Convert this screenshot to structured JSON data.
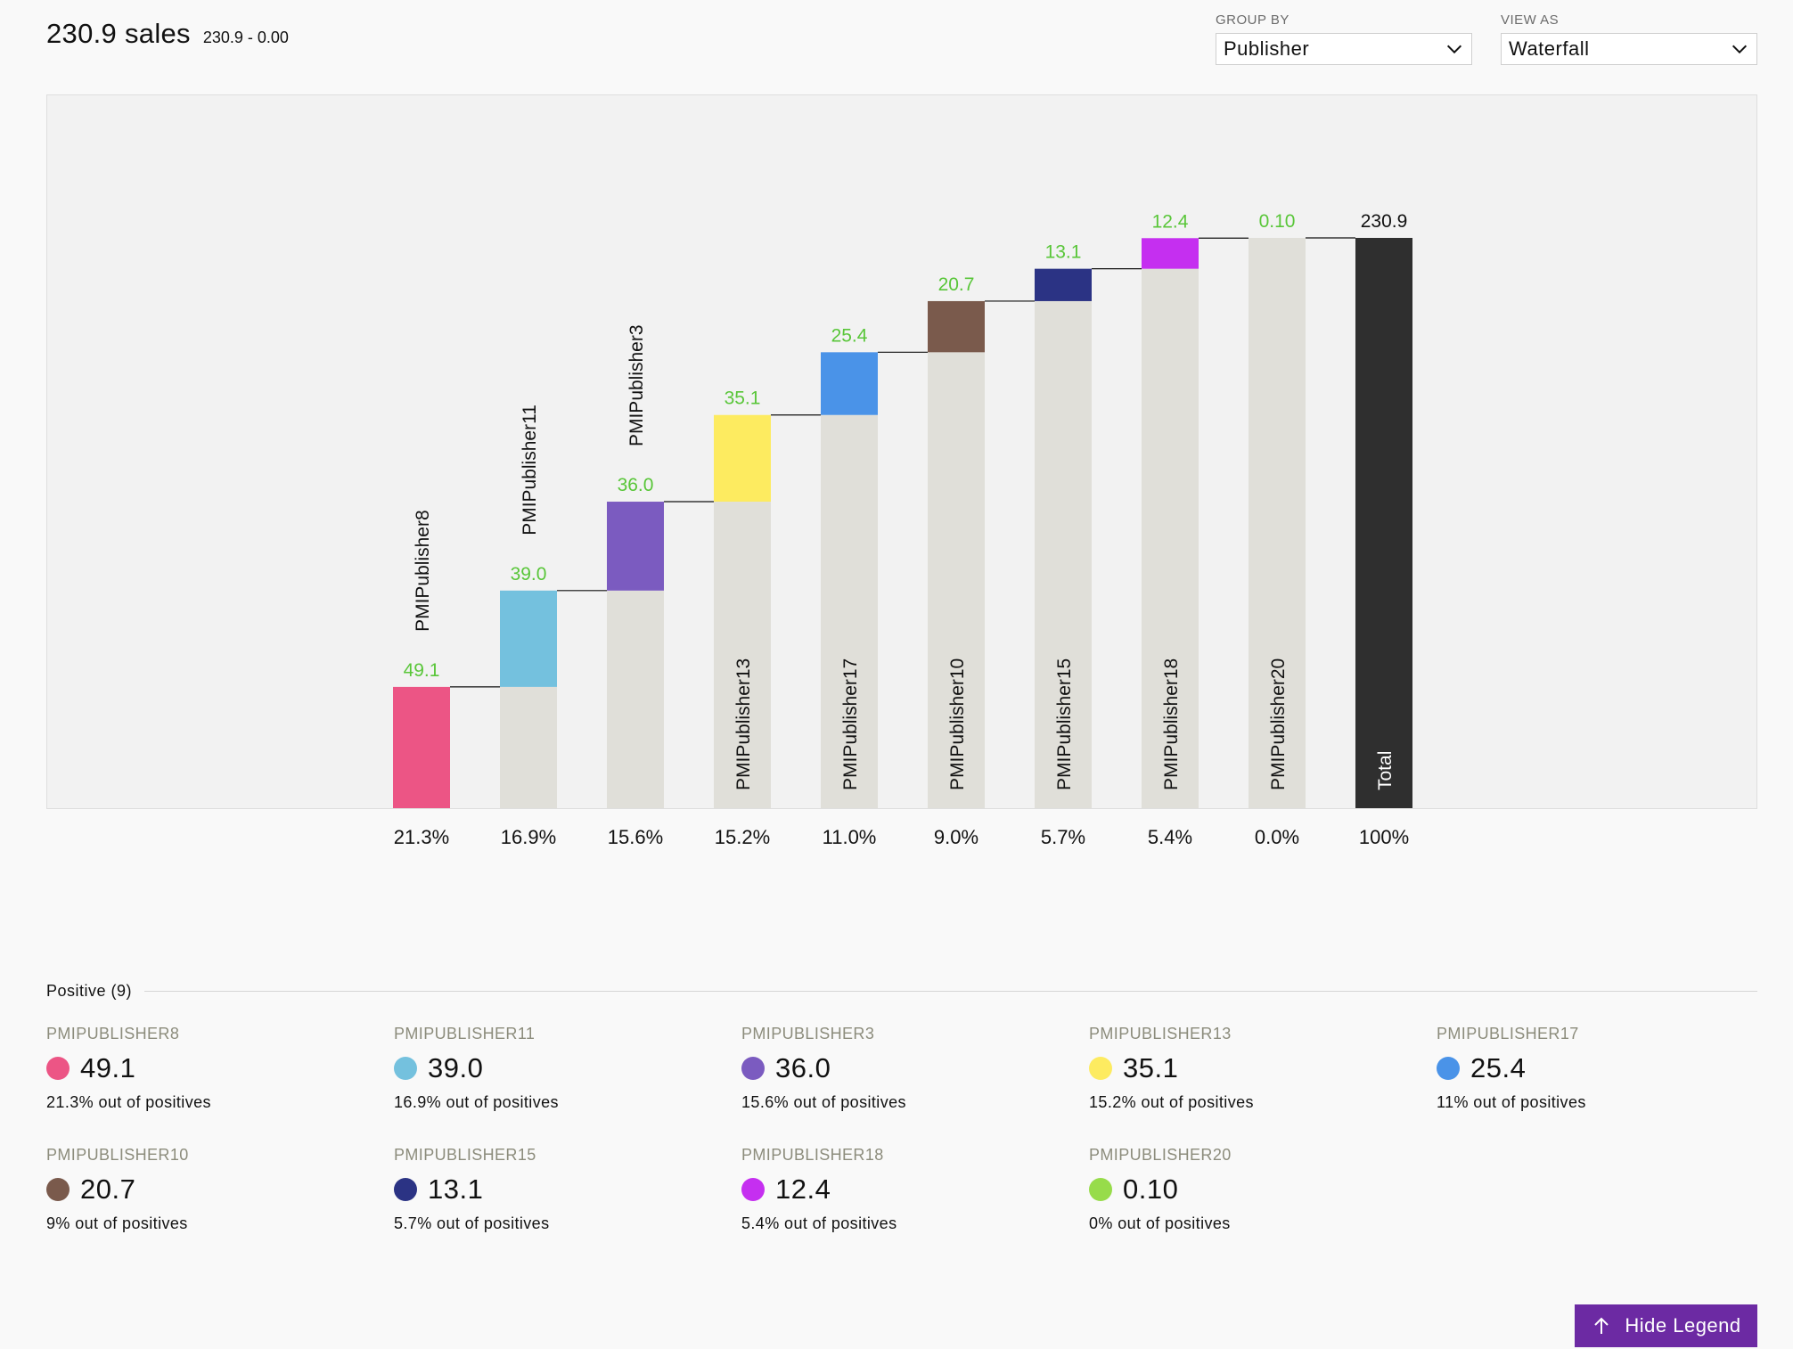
{
  "header": {
    "title": "230.9 sales",
    "subtitle": "230.9 - 0.00"
  },
  "controls": {
    "group_by": {
      "label": "GROUP BY",
      "value": "Publisher"
    },
    "view_as": {
      "label": "VIEW AS",
      "value": "Waterfall"
    }
  },
  "chart_data": {
    "type": "bar",
    "subtype": "waterfall",
    "categories": [
      "PMIPublisher8",
      "PMIPublisher11",
      "PMIPublisher3",
      "PMIPublisher13",
      "PMIPublisher17",
      "PMIPublisher10",
      "PMIPublisher15",
      "PMIPublisher18",
      "PMIPublisher20",
      "Total"
    ],
    "values": [
      49.1,
      39.0,
      36.0,
      35.1,
      25.4,
      20.7,
      13.1,
      12.4,
      0.1,
      230.9
    ],
    "value_labels": [
      "49.1",
      "39.0",
      "36.0",
      "35.1",
      "25.4",
      "20.7",
      "13.1",
      "12.4",
      "0.10",
      "230.9"
    ],
    "percent_labels": [
      "21.3%",
      "16.9%",
      "15.6%",
      "15.2%",
      "11.0%",
      "9.0%",
      "5.7%",
      "5.4%",
      "0.0%",
      "100%"
    ],
    "colors": [
      "#ec5585",
      "#74c1de",
      "#7b5bc0",
      "#fdeb60",
      "#4a93e8",
      "#7a5a4c",
      "#2b3384",
      "#c52ff0",
      "#e0dfd9",
      "#2f2f2f"
    ],
    "base_color": "#e0dfd9",
    "value_label_color": "#59c639",
    "total_label_color": "#111111",
    "ylim": [
      0,
      290
    ],
    "grid": false
  },
  "legend": {
    "header": "Positive (9)",
    "items": [
      {
        "name": "PMIPUBLISHER8",
        "value": "49.1",
        "pct": "21.3% out of positives",
        "color": "#ec5585"
      },
      {
        "name": "PMIPUBLISHER11",
        "value": "39.0",
        "pct": "16.9% out of positives",
        "color": "#74c1de"
      },
      {
        "name": "PMIPUBLISHER3",
        "value": "36.0",
        "pct": "15.6% out of positives",
        "color": "#7b5bc0"
      },
      {
        "name": "PMIPUBLISHER13",
        "value": "35.1",
        "pct": "15.2% out of positives",
        "color": "#fdeb60"
      },
      {
        "name": "PMIPUBLISHER17",
        "value": "25.4",
        "pct": "11% out of positives",
        "color": "#4a93e8"
      },
      {
        "name": "PMIPUBLISHER10",
        "value": "20.7",
        "pct": "9% out of positives",
        "color": "#7a5a4c"
      },
      {
        "name": "PMIPUBLISHER15",
        "value": "13.1",
        "pct": "5.7% out of positives",
        "color": "#2b3384"
      },
      {
        "name": "PMIPUBLISHER18",
        "value": "12.4",
        "pct": "5.4% out of positives",
        "color": "#c52ff0"
      },
      {
        "name": "PMIPUBLISHER20",
        "value": "0.10",
        "pct": "0% out of positives",
        "color": "#97dc4a"
      }
    ],
    "toggle_label": "Hide Legend"
  }
}
